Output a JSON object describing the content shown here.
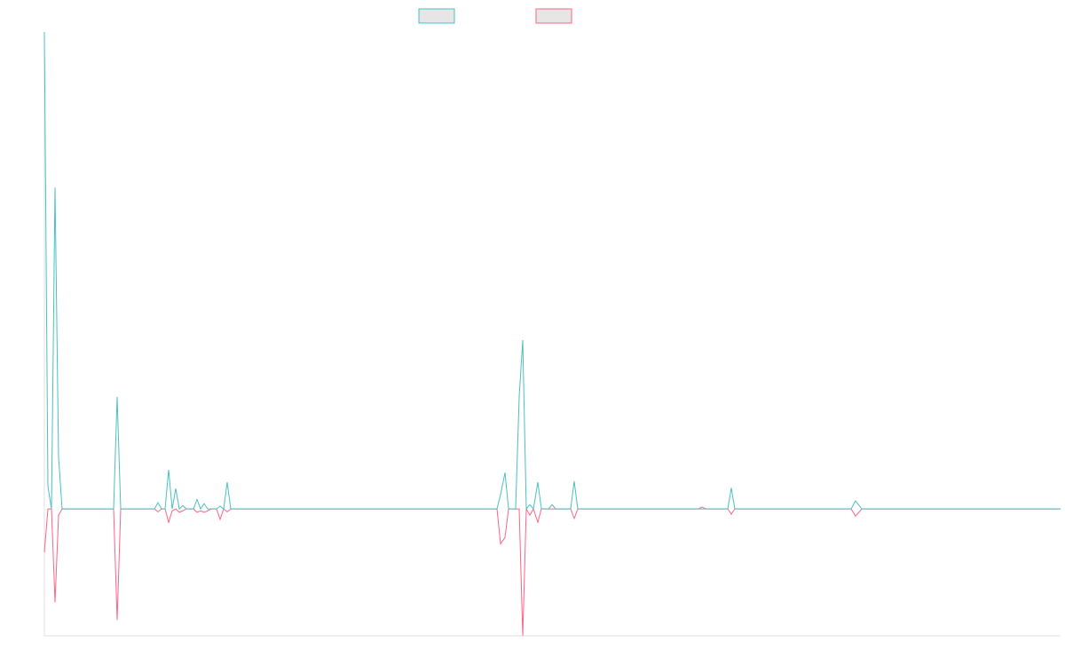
{
  "chart_data": {
    "type": "line",
    "x": [
      0,
      4,
      8,
      12,
      16,
      20,
      78,
      82,
      86,
      124,
      128,
      132,
      136,
      140,
      144,
      148,
      152,
      156,
      160,
      168,
      172,
      176,
      180,
      184,
      188,
      194,
      198,
      202,
      206,
      210,
      510,
      514,
      519,
      523,
      531,
      535,
      539,
      543,
      547,
      551,
      556,
      560,
      568,
      572,
      576,
      593,
      597,
      601,
      737,
      741,
      745,
      770,
      774,
      778,
      909,
      914,
      921,
      1145
    ],
    "series": [
      {
        "color": "#4bc0c0",
        "values": [
          100,
          4.7,
          0,
          67.4,
          10.8,
          0,
          0,
          23.5,
          0,
          0,
          1.3,
          0,
          0,
          8.2,
          0,
          4.3,
          0,
          0.7,
          0,
          0,
          2.0,
          0,
          1.1,
          0,
          0,
          0,
          0.6,
          0,
          5.6,
          0,
          0,
          3.0,
          7.6,
          0,
          0,
          23.5,
          35.4,
          0,
          0.9,
          0,
          5.6,
          0,
          0,
          0.9,
          0,
          0,
          5.8,
          0,
          0,
          0,
          0,
          0,
          4.4,
          0,
          0,
          1.7,
          0,
          0
        ]
      },
      {
        "color": "#ff6384",
        "values": [
          -9.1,
          0,
          0,
          -19.6,
          -1.3,
          0,
          0,
          -23.3,
          0,
          0,
          -0.6,
          0,
          0,
          -2.8,
          -0.4,
          0,
          -0.7,
          -0.4,
          0,
          0,
          -0.7,
          -0.4,
          -0.7,
          -0.4,
          0,
          0,
          -2.2,
          0,
          -0.6,
          0,
          0,
          -7.3,
          -6.0,
          0,
          0,
          0,
          -26.6,
          0,
          -1.3,
          0,
          -2.8,
          0,
          0,
          0,
          0,
          0,
          -2.0,
          0,
          0,
          0.4,
          0,
          0,
          -1.1,
          0,
          0,
          -1.5,
          0,
          0
        ]
      }
    ],
    "xlim": [
      0,
      1145
    ],
    "ylim": [
      -26.6,
      100
    ]
  }
}
